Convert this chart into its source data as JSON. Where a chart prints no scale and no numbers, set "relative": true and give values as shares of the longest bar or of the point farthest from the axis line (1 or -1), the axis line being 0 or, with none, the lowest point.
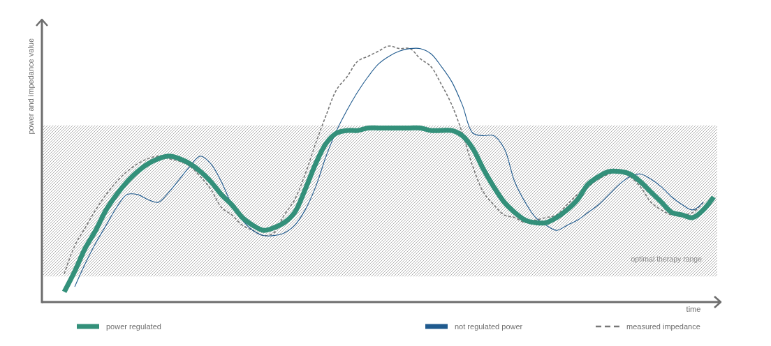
{
  "chart_data": {
    "type": "line",
    "relative": true,
    "xlabel": "time",
    "ylabel": "power and impedance value",
    "legend": "bottom",
    "line_style": "solid",
    "categories": [
      null,
      null,
      null,
      null,
      null,
      null,
      null,
      null,
      null,
      null,
      null,
      null,
      null,
      null,
      null,
      null,
      null,
      null,
      null,
      null,
      null,
      null,
      null,
      null,
      null,
      null,
      null,
      null,
      null,
      null,
      null,
      null,
      null,
      null,
      null,
      null,
      null,
      null,
      null,
      null,
      null,
      null,
      null,
      null,
      null,
      null,
      null,
      null,
      null,
      null,
      null,
      null,
      null,
      null,
      null,
      null,
      null,
      null,
      null,
      null,
      null,
      null,
      null
    ],
    "bands": [
      {
        "axis": "y",
        "from": 0.1,
        "to": 0.69,
        "label": "optimal therapy range",
        "color": "#a6a6a6"
      }
    ],
    "series": [
      {
        "name": "power regulated",
        "color": "#33907a",
        "values": [
          0.04,
          0.12,
          0.21,
          0.28,
          0.36,
          0.42,
          0.47,
          0.51,
          0.54,
          0.56,
          0.57,
          0.56,
          0.54,
          0.51,
          0.47,
          0.42,
          0.38,
          0.33,
          0.3,
          0.28,
          0.29,
          0.31,
          0.35,
          0.44,
          0.54,
          0.62,
          0.66,
          0.67,
          0.67,
          0.68,
          0.68,
          0.68,
          0.68,
          0.68,
          0.68,
          0.67,
          0.67,
          0.67,
          0.65,
          0.6,
          0.52,
          0.45,
          0.39,
          0.35,
          0.32,
          0.31,
          0.31,
          0.33,
          0.36,
          0.4,
          0.46,
          0.49,
          0.51,
          0.51,
          0.5,
          0.47,
          0.43,
          0.39,
          0.35,
          0.34,
          0.33,
          0.36,
          0.41
        ]
      },
      {
        "name": "not regulated power",
        "color": "#1f5a8e",
        "values": [
          null,
          0.06,
          0.15,
          0.23,
          0.3,
          0.37,
          0.42,
          0.42,
          0.4,
          0.39,
          0.43,
          0.48,
          0.53,
          0.57,
          0.54,
          0.47,
          0.38,
          0.32,
          0.28,
          0.26,
          0.26,
          0.27,
          0.3,
          0.36,
          0.45,
          0.57,
          0.67,
          0.75,
          0.82,
          0.88,
          0.93,
          0.96,
          0.98,
          0.99,
          0.99,
          0.97,
          0.92,
          0.86,
          0.77,
          0.66,
          0.65,
          0.65,
          0.6,
          0.47,
          0.39,
          0.33,
          0.3,
          0.28,
          0.3,
          0.32,
          0.35,
          0.38,
          0.42,
          0.46,
          0.49,
          0.5,
          0.48,
          0.45,
          0.41,
          0.38,
          0.36,
          0.39,
          null
        ]
      },
      {
        "name": "measured impedance",
        "color": "#777777",
        "line_style": "dashed",
        "values": [
          0.11,
          0.22,
          0.29,
          0.36,
          0.42,
          0.47,
          0.51,
          0.54,
          0.56,
          0.57,
          0.56,
          0.55,
          0.53,
          0.49,
          0.44,
          0.37,
          0.34,
          0.3,
          0.28,
          0.26,
          0.27,
          0.34,
          0.4,
          0.5,
          0.62,
          0.73,
          0.83,
          0.88,
          0.94,
          0.96,
          0.98,
          1.0,
          0.99,
          0.99,
          0.95,
          0.92,
          0.85,
          0.77,
          0.66,
          0.53,
          0.43,
          0.38,
          0.34,
          0.33,
          0.31,
          0.32,
          0.33,
          0.34,
          0.38,
          0.42,
          0.45,
          0.48,
          0.5,
          0.51,
          0.49,
          0.45,
          0.39,
          0.36,
          0.34,
          0.34,
          0.35,
          0.39,
          null
        ]
      }
    ]
  }
}
